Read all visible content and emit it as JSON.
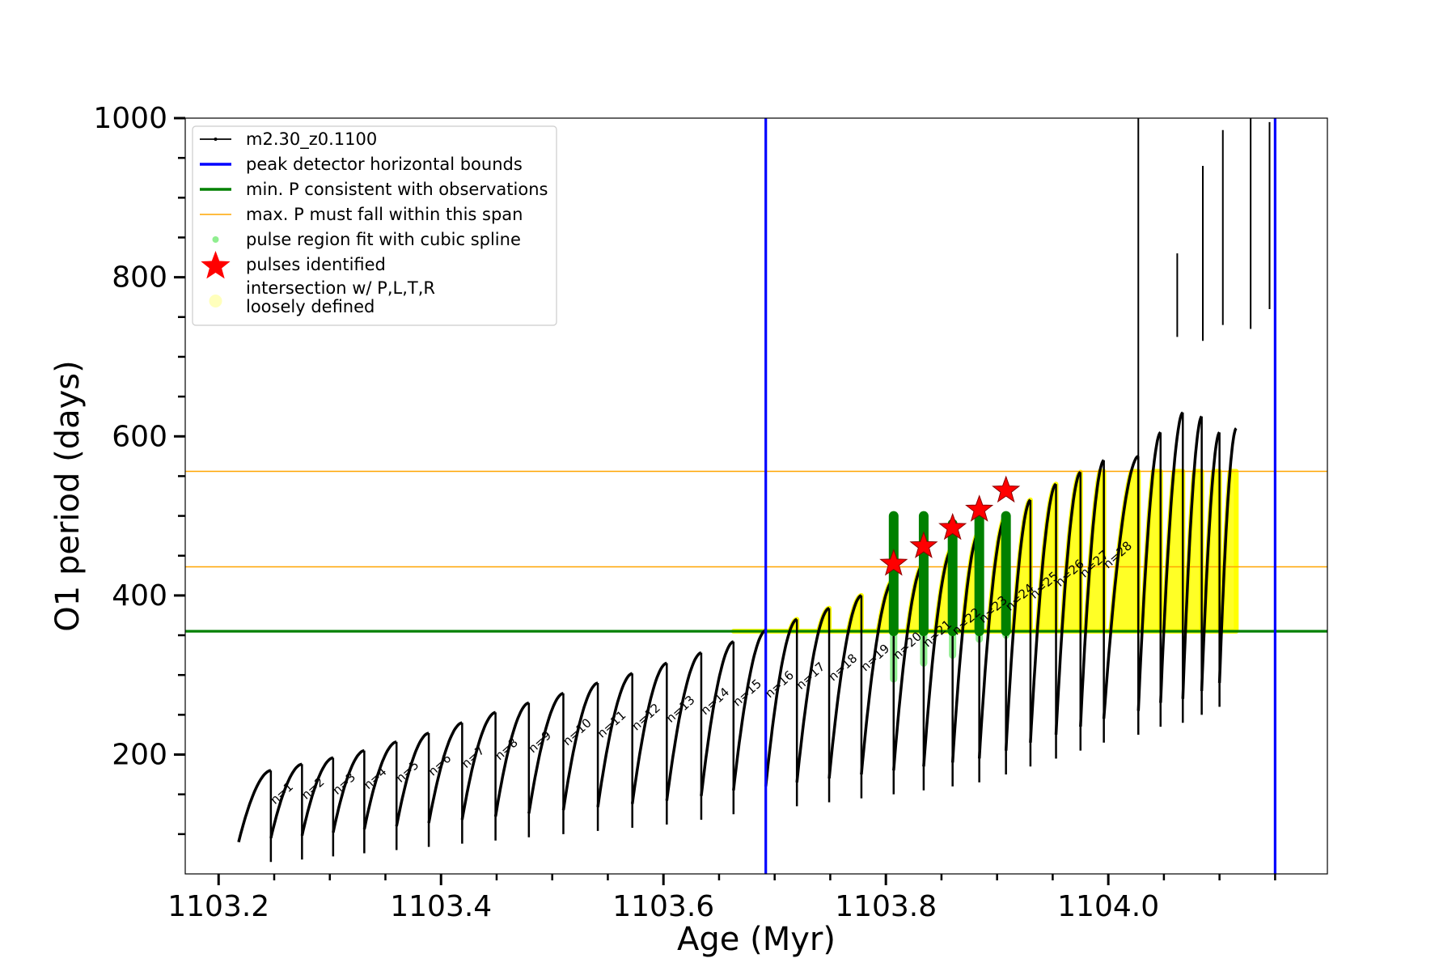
{
  "chart_data": {
    "type": "line",
    "xlabel": "Age (Myr)",
    "ylabel": "O1 period (days)",
    "xlim": [
      1103.17,
      1104.197
    ],
    "ylim": [
      50,
      1000
    ],
    "x_ticks": [
      1103.2,
      1103.4,
      1103.6,
      1103.8,
      1104.0
    ],
    "x_tick_labels": [
      "1103.2",
      "1103.4",
      "1103.6",
      "1103.8",
      "1104.0"
    ],
    "y_ticks": [
      200,
      400,
      600,
      800,
      1000
    ],
    "y_tick_labels": [
      "200",
      "400",
      "600",
      "800",
      "1000"
    ],
    "grid": false,
    "legend_placement": "top-left",
    "legend": [
      {
        "label": "m2.30_z0.1100",
        "kind": "line-marker",
        "color": "#000000"
      },
      {
        "label": "peak detector horizontal bounds",
        "kind": "line",
        "color": "#0000ff"
      },
      {
        "label": "min. P consistent with observations",
        "kind": "line",
        "color": "#008000"
      },
      {
        "label": "max. P must fall within this span",
        "kind": "thin-line",
        "color": "#ffa500"
      },
      {
        "label": "pulse region fit with cubic spline",
        "kind": "dot",
        "color": "#90ee90"
      },
      {
        "label": "pulses identified",
        "kind": "star",
        "color": "#ff0000"
      },
      {
        "label": "intersection w/ P,L,T,R\nloosely defined",
        "kind": "circle",
        "color": "#ffffa0"
      }
    ],
    "series": [
      {
        "name": "m2.30_z0.1100",
        "color": "#000000",
        "pulses": [
          {
            "n": 1,
            "x0": 1103.218,
            "x1": 1103.247,
            "y0": 90,
            "y1": 180
          },
          {
            "n": 2,
            "x0": 1103.247,
            "x1": 1103.275,
            "y0": 95,
            "y1": 188
          },
          {
            "n": 3,
            "x0": 1103.275,
            "x1": 1103.303,
            "y0": 98,
            "y1": 196
          },
          {
            "n": 4,
            "x0": 1103.303,
            "x1": 1103.331,
            "y0": 102,
            "y1": 205
          },
          {
            "n": 5,
            "x0": 1103.331,
            "x1": 1103.36,
            "y0": 106,
            "y1": 216
          },
          {
            "n": 6,
            "x0": 1103.36,
            "x1": 1103.389,
            "y0": 110,
            "y1": 227
          },
          {
            "n": 7,
            "x0": 1103.389,
            "x1": 1103.419,
            "y0": 114,
            "y1": 240
          },
          {
            "n": 8,
            "x0": 1103.419,
            "x1": 1103.449,
            "y0": 118,
            "y1": 253
          },
          {
            "n": 9,
            "x0": 1103.449,
            "x1": 1103.479,
            "y0": 122,
            "y1": 265
          },
          {
            "n": 10,
            "x0": 1103.479,
            "x1": 1103.51,
            "y0": 126,
            "y1": 277
          },
          {
            "n": 11,
            "x0": 1103.51,
            "x1": 1103.541,
            "y0": 130,
            "y1": 290
          },
          {
            "n": 12,
            "x0": 1103.541,
            "x1": 1103.572,
            "y0": 134,
            "y1": 302
          },
          {
            "n": 13,
            "x0": 1103.572,
            "x1": 1103.603,
            "y0": 138,
            "y1": 315
          },
          {
            "n": 14,
            "x0": 1103.603,
            "x1": 1103.634,
            "y0": 142,
            "y1": 328
          },
          {
            "n": 15,
            "x0": 1103.634,
            "x1": 1103.663,
            "y0": 148,
            "y1": 342
          },
          {
            "n": 16,
            "x0": 1103.663,
            "x1": 1103.692,
            "y0": 155,
            "y1": 356
          },
          {
            "n": 17,
            "x0": 1103.692,
            "x1": 1103.72,
            "y0": 160,
            "y1": 370
          },
          {
            "n": 18,
            "x0": 1103.72,
            "x1": 1103.749,
            "y0": 165,
            "y1": 384
          },
          {
            "n": 19,
            "x0": 1103.749,
            "x1": 1103.778,
            "y0": 170,
            "y1": 400
          },
          {
            "n": 20,
            "x0": 1103.778,
            "x1": 1103.807,
            "y0": 175,
            "y1": 420
          },
          {
            "n": 21,
            "x0": 1103.807,
            "x1": 1103.834,
            "y0": 180,
            "y1": 440
          },
          {
            "n": 22,
            "x0": 1103.834,
            "x1": 1103.86,
            "y0": 185,
            "y1": 460
          },
          {
            "n": 23,
            "x0": 1103.86,
            "x1": 1103.884,
            "y0": 190,
            "y1": 480
          },
          {
            "n": 24,
            "x0": 1103.884,
            "x1": 1103.908,
            "y0": 195,
            "y1": 500
          },
          {
            "n": 25,
            "x0": 1103.908,
            "x1": 1103.93,
            "y0": 205,
            "y1": 520
          },
          {
            "n": 26,
            "x0": 1103.93,
            "x1": 1103.953,
            "y0": 215,
            "y1": 540
          },
          {
            "n": 27,
            "x0": 1103.953,
            "x1": 1103.975,
            "y0": 225,
            "y1": 555
          },
          {
            "n": 28,
            "x0": 1103.975,
            "x1": 1103.996,
            "y0": 235,
            "y1": 570
          },
          {
            "n": 29,
            "x0": 1103.996,
            "x1": 1104.027,
            "y0": 245,
            "y1": 575
          },
          {
            "n": 30,
            "x0": 1104.027,
            "x1": 1104.047,
            "y0": 255,
            "y1": 605
          },
          {
            "n": 31,
            "x0": 1104.047,
            "x1": 1104.067,
            "y0": 265,
            "y1": 630
          },
          {
            "n": 32,
            "x0": 1104.067,
            "x1": 1104.084,
            "y0": 270,
            "y1": 625
          },
          {
            "n": 33,
            "x0": 1104.084,
            "x1": 1104.1,
            "y0": 280,
            "y1": 605
          },
          {
            "n": 34,
            "x0": 1104.1,
            "x1": 1104.115,
            "y0": 290,
            "y1": 610
          }
        ],
        "isolated_segments": [
          {
            "x": 1104.027,
            "y_low": 345,
            "y_high": 1000
          },
          {
            "x": 1104.062,
            "y_low": 725,
            "y_high": 830
          },
          {
            "x": 1104.085,
            "y_low": 720,
            "y_high": 940
          },
          {
            "x": 1104.103,
            "y_low": 740,
            "y_high": 985
          },
          {
            "x": 1104.128,
            "y_low": 735,
            "y_high": 1000
          },
          {
            "x": 1104.145,
            "y_low": 760,
            "y_high": 995
          }
        ]
      }
    ],
    "vertical_lines": [
      {
        "x": 1103.692,
        "color": "#0000ff",
        "role": "peak detector horizontal bounds"
      },
      {
        "x": 1104.15,
        "color": "#0000ff",
        "role": "peak detector horizontal bounds"
      }
    ],
    "horizontal_lines": [
      {
        "y": 355,
        "color": "#008000",
        "role": "min. P consistent with observations"
      },
      {
        "y": 436,
        "color": "#ffa500",
        "role": "max. P must fall within this span"
      },
      {
        "y": 556,
        "color": "#ffa500",
        "role": "max. P must fall within this span"
      }
    ],
    "spline_regions": [
      {
        "x": 1103.807,
        "y_low": 295,
        "y_high": 495,
        "color": "#90ee90"
      },
      {
        "x": 1103.834,
        "y_low": 315,
        "y_high": 495,
        "color": "#90ee90"
      },
      {
        "x": 1103.86,
        "y_low": 325,
        "y_high": 490,
        "color": "#90ee90"
      },
      {
        "x": 1103.884,
        "y_low": 345,
        "y_high": 500,
        "color": "#90ee90"
      },
      {
        "x": 1103.908,
        "y_low": 350,
        "y_high": 500,
        "color": "#90ee90"
      }
    ],
    "green_bars": [
      {
        "x": 1103.807,
        "y_low": 355,
        "y_high": 500
      },
      {
        "x": 1103.834,
        "y_low": 355,
        "y_high": 500
      },
      {
        "x": 1103.86,
        "y_low": 355,
        "y_high": 490
      },
      {
        "x": 1103.884,
        "y_low": 355,
        "y_high": 500
      },
      {
        "x": 1103.908,
        "y_low": 355,
        "y_high": 500
      }
    ],
    "pulses_identified": [
      {
        "n": 19,
        "x": 1103.807,
        "y": 440
      },
      {
        "n": 20,
        "x": 1103.834,
        "y": 462
      },
      {
        "n": 21,
        "x": 1103.86,
        "y": 485
      },
      {
        "n": 22,
        "x": 1103.884,
        "y": 508
      },
      {
        "n": 23,
        "x": 1103.908,
        "y": 532
      }
    ],
    "pulse_labels": [
      "n=1",
      "n=2",
      "n=3",
      "n=4",
      "n=5",
      "n=6",
      "n=7",
      "n=8",
      "n=9",
      "n=10",
      "n=11",
      "n=12",
      "n=13",
      "n=14",
      "n=15",
      "n=16",
      "n=17",
      "n=18",
      "n=19",
      "n=20",
      "n=21",
      "n=22",
      "n=23",
      "n=24",
      "n=25",
      "n=26",
      "n=27",
      "n=28"
    ]
  }
}
